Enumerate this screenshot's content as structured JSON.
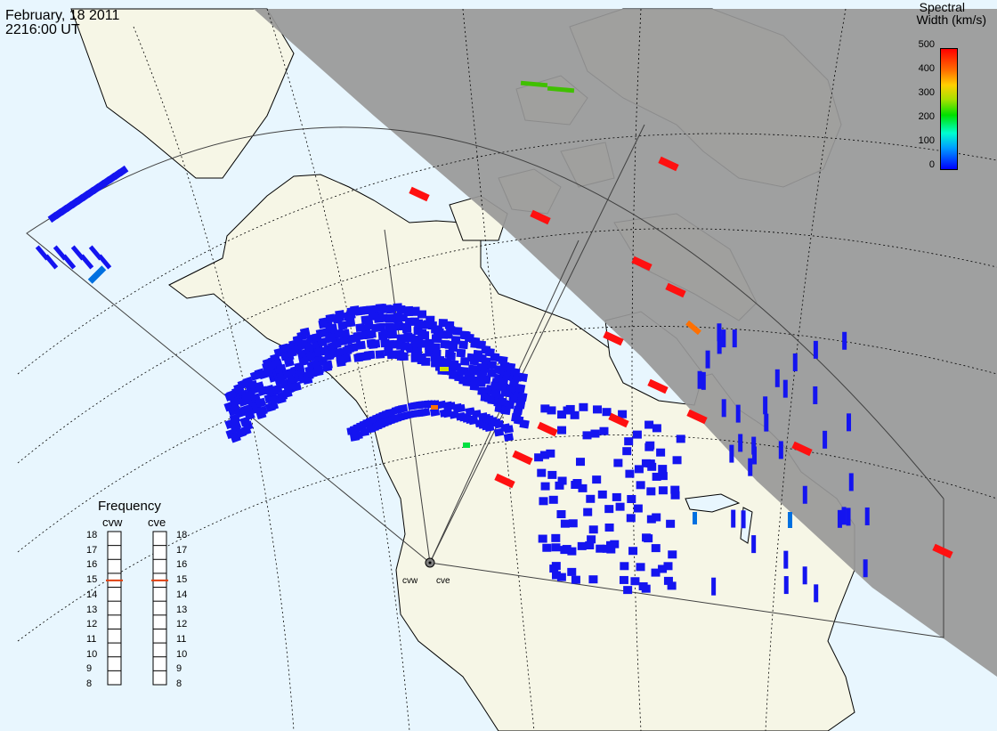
{
  "title": {
    "date": "February, 18 2011",
    "time": "2216:00 UT"
  },
  "colorbar": {
    "title_line1": "Spectral",
    "title_line2": "Width (km/s)",
    "ticks": [
      "500",
      "400",
      "300",
      "200",
      "100",
      "0"
    ],
    "colors": [
      "#0000ff",
      "#00a0ff",
      "#00ffd0",
      "#00e000",
      "#ffd000",
      "#ff7000",
      "#ff0000"
    ]
  },
  "frequency_panel": {
    "heading": "Frequency",
    "radars": [
      {
        "name": "cvw",
        "selected": 15
      },
      {
        "name": "cve",
        "selected": 15
      }
    ],
    "scale": [
      "18",
      "17",
      "16",
      "15",
      "14",
      "13",
      "12",
      "11",
      "10",
      "9",
      "8"
    ]
  },
  "radar_sites": {
    "west": "cvw",
    "east": "cve"
  },
  "colors": {
    "ocean": "#e8f6fe",
    "land": "#f6f6e6",
    "night": "#989898",
    "echo_low": "#1414f0",
    "echo_high": "#ff1010"
  }
}
